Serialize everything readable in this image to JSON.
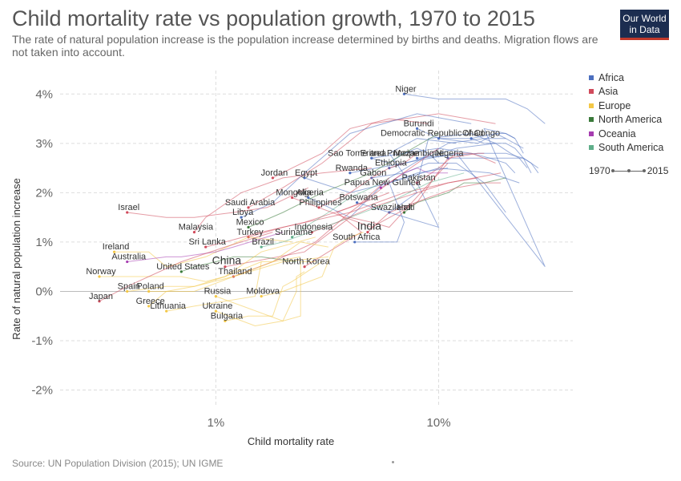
{
  "title": "Child mortality rate vs population growth, 1970 to 2015",
  "subtitle": "The rate of natural population increase is the population increase determined by births and deaths. Migration flows are not taken into account.",
  "logo": {
    "line1": "Our World",
    "line2": "in Data"
  },
  "source": "Source: UN Population Division (2015); UN IGME",
  "legend": {
    "items": [
      {
        "name": "Africa",
        "color": "#4c6fbf"
      },
      {
        "name": "Asia",
        "color": "#d04a5b"
      },
      {
        "name": "Europe",
        "color": "#f3c746"
      },
      {
        "name": "North America",
        "color": "#3a7a3a"
      },
      {
        "name": "Oceania",
        "color": "#a63cb0"
      },
      {
        "name": "South America",
        "color": "#5fae8a"
      }
    ],
    "timeline_start": "1970",
    "timeline_end": "2015"
  },
  "chart_data": {
    "type": "scatter",
    "title": "Child mortality rate vs population growth, 1970 to 2015",
    "xlabel": "Child mortality rate",
    "ylabel": "Rate of natural population increase",
    "x_scale": "log",
    "x_ticks": [
      1,
      10
    ],
    "x_tick_labels": [
      "1%",
      "10%"
    ],
    "y_ticks": [
      -2,
      -1,
      0,
      1,
      2,
      3,
      4
    ],
    "y_tick_labels": [
      "-2%",
      "-1%",
      "0%",
      "1%",
      "2%",
      "3%",
      "4%"
    ],
    "xlim": [
      0.2,
      40
    ],
    "ylim": [
      -2.3,
      4.2
    ],
    "grid": true,
    "legend_position": "right",
    "series": [
      {
        "name": "Niger",
        "region": "Africa",
        "x": [
          30,
          25,
          20,
          15,
          10,
          7
        ],
        "y": [
          3.4,
          3.7,
          3.9,
          3.9,
          3.9,
          4.0
        ]
      },
      {
        "name": "Burundi",
        "region": "Africa",
        "x": [
          24,
          20,
          18,
          15,
          10,
          8
        ],
        "y": [
          2.9,
          3.1,
          3.2,
          3.0,
          3.1,
          3.3
        ]
      },
      {
        "name": "Democratic Republic of Congo",
        "region": "Africa",
        "x": [
          24,
          22,
          20,
          18,
          14,
          10
        ],
        "y": [
          2.8,
          3.1,
          3.2,
          3.2,
          3.1,
          3.1
        ]
      },
      {
        "name": "Chad",
        "region": "Africa",
        "x": [
          26,
          24,
          22,
          20,
          16,
          14
        ],
        "y": [
          2.4,
          2.7,
          2.9,
          3.0,
          3.0,
          3.1
        ]
      },
      {
        "name": "Sao Tome and Principe",
        "region": "Africa",
        "x": [
          10,
          9,
          8,
          7,
          6,
          5
        ],
        "y": [
          2.6,
          2.8,
          2.9,
          2.8,
          2.6,
          2.7
        ]
      },
      {
        "name": "Eritrea",
        "region": "Africa",
        "x": [
          22,
          20,
          17,
          14,
          10,
          5
        ],
        "y": [
          2.4,
          2.6,
          2.7,
          2.8,
          2.9,
          2.7
        ]
      },
      {
        "name": "Mozambique",
        "region": "Africa",
        "x": [
          28,
          26,
          24,
          20,
          15,
          8
        ],
        "y": [
          2.4,
          2.6,
          2.7,
          2.8,
          2.8,
          2.7
        ]
      },
      {
        "name": "Nigeria",
        "region": "Africa",
        "x": [
          28,
          26,
          24,
          22,
          18,
          11
        ],
        "y": [
          2.5,
          2.6,
          2.7,
          2.7,
          2.7,
          2.7
        ]
      },
      {
        "name": "Rwanda",
        "region": "Africa",
        "x": [
          22,
          20,
          16,
          30,
          12,
          4
        ],
        "y": [
          3.1,
          3.2,
          3.3,
          0.5,
          2.8,
          2.4
        ]
      },
      {
        "name": "Ethiopia",
        "region": "Africa",
        "x": [
          25,
          23,
          21,
          18,
          12,
          6
        ],
        "y": [
          2.5,
          2.7,
          2.8,
          3.0,
          2.9,
          2.5
        ]
      },
      {
        "name": "Gabon",
        "region": "Africa",
        "x": [
          20,
          16,
          12,
          9,
          7,
          5
        ],
        "y": [
          1.6,
          2.2,
          2.6,
          2.6,
          2.4,
          2.3
        ]
      },
      {
        "name": "Pakistan",
        "region": "Asia",
        "x": [
          18,
          16,
          14,
          12,
          10,
          8
        ],
        "y": [
          2.6,
          2.7,
          2.8,
          2.8,
          2.5,
          2.2
        ]
      },
      {
        "name": "Egypt",
        "region": "Africa",
        "x": [
          23,
          17,
          10,
          6,
          4,
          2.5
        ],
        "y": [
          2.2,
          2.4,
          2.5,
          2.2,
          2.0,
          2.3
        ]
      },
      {
        "name": "Jordan",
        "region": "Asia",
        "x": [
          9,
          6,
          4,
          3,
          2.2,
          1.8
        ],
        "y": [
          3.4,
          3.5,
          3.3,
          2.8,
          2.5,
          2.3
        ]
      },
      {
        "name": "Algeria",
        "region": "Africa",
        "x": [
          20,
          16,
          11,
          6,
          4,
          2.6
        ],
        "y": [
          3.1,
          3.1,
          3.0,
          2.3,
          1.5,
          1.9
        ]
      },
      {
        "name": "Papua New Guinea",
        "region": "Oceania",
        "x": [
          11,
          9,
          8,
          7,
          6,
          5.5
        ],
        "y": [
          2.4,
          2.4,
          2.5,
          2.4,
          2.2,
          2.1
        ]
      },
      {
        "name": "Mongolia",
        "region": "Asia",
        "x": [
          16,
          15,
          11,
          8,
          5,
          2.2
        ],
        "y": [
          2.8,
          2.8,
          2.7,
          1.8,
          1.3,
          1.9
        ]
      },
      {
        "name": "Botswana",
        "region": "Africa",
        "x": [
          12,
          8,
          6,
          8,
          6,
          4.3
        ],
        "y": [
          3.0,
          3.1,
          2.8,
          2.0,
          1.6,
          1.8
        ]
      },
      {
        "name": "Israel",
        "region": "Asia",
        "x": [
          2.6,
          1.7,
          1.2,
          0.8,
          0.6,
          0.4
        ],
        "y": [
          2.1,
          1.7,
          1.6,
          1.5,
          1.5,
          1.6
        ]
      },
      {
        "name": "Saudi Arabia",
        "region": "Asia",
        "x": [
          18,
          10,
          5,
          3,
          2,
          1.4
        ],
        "y": [
          3.4,
          3.6,
          3.4,
          2.6,
          2.1,
          1.7
        ]
      },
      {
        "name": "Philippines",
        "region": "Asia",
        "x": [
          8,
          7,
          6,
          5,
          4,
          2.9
        ],
        "y": [
          2.8,
          2.6,
          2.5,
          2.3,
          2.0,
          1.7
        ]
      },
      {
        "name": "Swaziland",
        "region": "Africa",
        "x": [
          18,
          14,
          9,
          8,
          10,
          6
        ],
        "y": [
          3.0,
          3.2,
          3.1,
          2.2,
          1.3,
          1.6
        ]
      },
      {
        "name": "Haiti",
        "region": "North America",
        "x": [
          20,
          16,
          13,
          11,
          8,
          7
        ],
        "y": [
          2.3,
          2.2,
          2.2,
          2.0,
          1.8,
          1.6
        ]
      },
      {
        "name": "Libya",
        "region": "Africa",
        "x": [
          14,
          8,
          4,
          2.5,
          1.8,
          1.3
        ],
        "y": [
          3.4,
          3.6,
          3.2,
          2.4,
          1.8,
          1.5
        ]
      },
      {
        "name": "Mexico",
        "region": "North America",
        "x": [
          10,
          7,
          5,
          3,
          2,
          1.4
        ],
        "y": [
          3.2,
          2.8,
          2.4,
          2.0,
          1.6,
          1.3
        ]
      },
      {
        "name": "Indonesia",
        "region": "Asia",
        "x": [
          15,
          11,
          8,
          5,
          3.5,
          2.7
        ],
        "y": [
          2.3,
          2.2,
          2.0,
          1.7,
          1.4,
          1.2
        ]
      },
      {
        "name": "India",
        "region": "Asia",
        "x": [
          19,
          16,
          12,
          9,
          6,
          4.8
        ],
        "y": [
          2.2,
          2.2,
          2.1,
          1.9,
          1.6,
          1.2
        ]
      },
      {
        "name": "Malaysia",
        "region": "Asia",
        "x": [
          5,
          3,
          2,
          1.3,
          0.9,
          0.8
        ],
        "y": [
          2.5,
          2.4,
          2.3,
          2.0,
          1.5,
          1.2
        ]
      },
      {
        "name": "Turkey",
        "region": "Asia",
        "x": [
          19,
          11,
          7,
          4,
          2,
          1.4
        ],
        "y": [
          2.4,
          2.2,
          2.0,
          1.6,
          1.3,
          1.1
        ]
      },
      {
        "name": "Suriname",
        "region": "South America",
        "x": [
          6,
          5,
          4,
          3.2,
          2.5,
          2.2
        ],
        "y": [
          2.3,
          2.1,
          1.9,
          1.6,
          1.3,
          1.1
        ]
      },
      {
        "name": "Sri Lanka",
        "region": "Asia",
        "x": [
          6,
          4,
          2.5,
          1.6,
          1.1,
          0.9
        ],
        "y": [
          2.0,
          1.7,
          1.4,
          1.2,
          1.0,
          0.9
        ]
      },
      {
        "name": "Brazil",
        "region": "South America",
        "x": [
          13,
          9,
          6,
          3.5,
          2,
          1.6
        ],
        "y": [
          2.4,
          2.2,
          1.8,
          1.4,
          1.0,
          0.9
        ]
      },
      {
        "name": "South Africa",
        "region": "Africa",
        "x": [
          11,
          8,
          6,
          7,
          6.5,
          4.2
        ],
        "y": [
          2.5,
          2.4,
          2.2,
          1.4,
          1.0,
          1.0
        ]
      },
      {
        "name": "Ireland",
        "region": "Europe",
        "x": [
          2.2,
          1.4,
          0.9,
          0.6,
          0.5,
          0.35
        ],
        "y": [
          1.0,
          1.1,
          0.7,
          0.5,
          0.8,
          0.8
        ]
      },
      {
        "name": "Australia",
        "region": "Oceania",
        "x": [
          2.0,
          1.2,
          1.0,
          0.7,
          0.6,
          0.4
        ],
        "y": [
          1.2,
          0.9,
          0.8,
          0.7,
          0.7,
          0.6
        ]
      },
      {
        "name": "China",
        "region": "Asia",
        "x": [
          11,
          6,
          5,
          4,
          2.5,
          1.1
        ],
        "y": [
          2.6,
          1.3,
          1.4,
          1.5,
          0.8,
          0.5
        ]
      },
      {
        "name": "North Korea",
        "region": "Asia",
        "x": [
          6,
          4.5,
          3.5,
          4.5,
          3.2,
          2.5
        ],
        "y": [
          2.3,
          1.8,
          1.6,
          1.2,
          0.8,
          0.5
        ]
      },
      {
        "name": "Norway",
        "region": "Europe",
        "x": [
          1.6,
          1.1,
          0.9,
          0.7,
          0.5,
          0.3
        ],
        "y": [
          0.6,
          0.3,
          0.2,
          0.3,
          0.3,
          0.3
        ]
      },
      {
        "name": "United States",
        "region": "North America",
        "x": [
          2.3,
          1.6,
          1.2,
          1.0,
          0.8,
          0.7
        ],
        "y": [
          0.6,
          0.7,
          0.7,
          0.6,
          0.5,
          0.4
        ]
      },
      {
        "name": "Thailand",
        "region": "Asia",
        "x": [
          10,
          6,
          4,
          2.8,
          1.8,
          1.2
        ],
        "y": [
          2.9,
          2.2,
          1.6,
          1.0,
          0.6,
          0.3
        ]
      },
      {
        "name": "Poland",
        "region": "Europe",
        "x": [
          3.2,
          2.4,
          1.8,
          1.2,
          0.8,
          0.5
        ],
        "y": [
          0.9,
          1.0,
          0.6,
          0.3,
          0.0,
          0.0
        ]
      },
      {
        "name": "Spain",
        "region": "Europe",
        "x": [
          2.8,
          1.6,
          1.1,
          0.8,
          0.6,
          0.4
        ],
        "y": [
          1.1,
          0.8,
          0.3,
          0.1,
          0.1,
          0.0
        ]
      },
      {
        "name": "Russia",
        "region": "Europe",
        "x": [
          2.8,
          2.5,
          2.4,
          2.4,
          2.0,
          1.0
        ],
        "y": [
          0.6,
          0.6,
          0.6,
          -0.5,
          -0.6,
          -0.1
        ]
      },
      {
        "name": "Moldova",
        "region": "Europe",
        "x": [
          4.6,
          4.0,
          3.4,
          3.0,
          2.0,
          1.6
        ],
        "y": [
          1.2,
          1.1,
          0.9,
          0.3,
          0.0,
          -0.1
        ]
      },
      {
        "name": "Japan",
        "region": "Asia",
        "x": [
          1.8,
          1.1,
          0.7,
          0.5,
          0.4,
          0.3
        ],
        "y": [
          1.2,
          0.9,
          0.6,
          0.3,
          0.1,
          -0.2
        ]
      },
      {
        "name": "Greece",
        "region": "Europe",
        "x": [
          3.2,
          2.0,
          1.2,
          0.8,
          0.6,
          0.5
        ],
        "y": [
          0.7,
          0.6,
          0.3,
          0.1,
          0.0,
          -0.3
        ]
      },
      {
        "name": "Ukraine",
        "region": "Europe",
        "x": [
          2.5,
          2.3,
          2.3,
          2.0,
          1.5,
          1.0
        ],
        "y": [
          0.4,
          0.3,
          0.0,
          -0.6,
          -0.7,
          -0.4
        ]
      },
      {
        "name": "Lithuania",
        "region": "Europe",
        "x": [
          2.4,
          1.8,
          1.6,
          1.5,
          0.8,
          0.6
        ],
        "y": [
          0.7,
          0.6,
          0.6,
          -0.1,
          -0.3,
          -0.4
        ]
      },
      {
        "name": "Bulgaria",
        "region": "Europe",
        "x": [
          3.0,
          2.2,
          2.0,
          1.8,
          1.4,
          1.1
        ],
        "y": [
          0.6,
          0.2,
          0.1,
          -0.5,
          -0.5,
          -0.6
        ]
      }
    ]
  }
}
